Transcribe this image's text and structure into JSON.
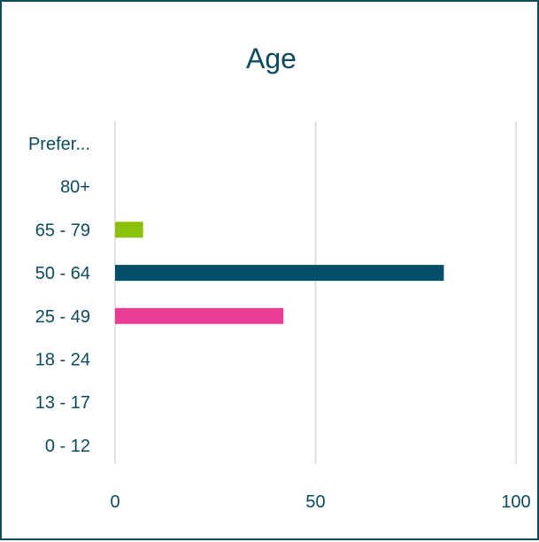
{
  "chart_data": {
    "type": "bar",
    "orientation": "horizontal",
    "title": "Age",
    "categories": [
      "Prefer...",
      "80+",
      "65 - 79",
      "50 - 64",
      "25 - 49",
      "18 - 24",
      "13 - 17",
      "0 - 12"
    ],
    "values": [
      0,
      0,
      7,
      82,
      42,
      0,
      0,
      0
    ],
    "colors": [
      "#8bc10a",
      "#8bc10a",
      "#8bc10a",
      "#024e6b",
      "#ea3d96",
      "#8bc10a",
      "#8bc10a",
      "#8bc10a"
    ],
    "xlim": [
      0,
      100
    ],
    "xticks": [
      0,
      50,
      100
    ],
    "xtick_labels": [
      "0",
      "50",
      "100"
    ],
    "grid": "vertical",
    "legend": "none"
  },
  "colors": {
    "border": "#0b4a5f",
    "text": "#0b4a5f",
    "gridline": "#d9d9d9"
  }
}
